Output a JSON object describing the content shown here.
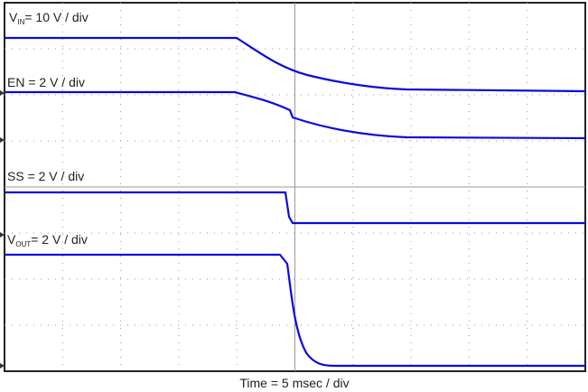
{
  "traces": [
    {
      "main": "V",
      "sub": "IN",
      "rest": "= 10 V / div"
    },
    {
      "main": "EN = 2 V / div"
    },
    {
      "main": "SS = 2 V / div"
    },
    {
      "main": "V",
      "sub": "OUT",
      "rest": "= 2 V / div"
    }
  ],
  "x_label": "Time = 5 msec / div"
}
